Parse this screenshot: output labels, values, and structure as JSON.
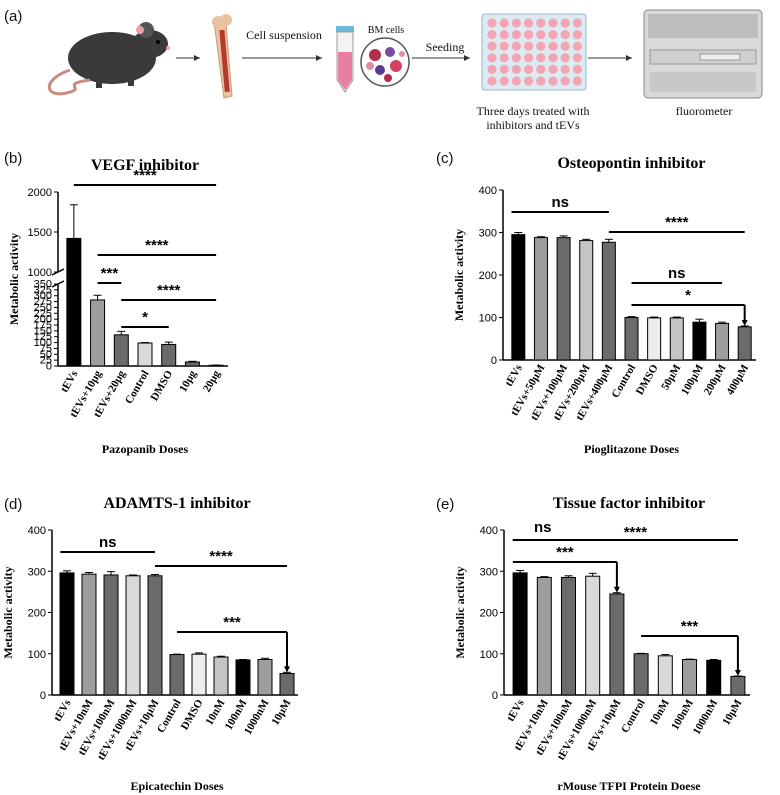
{
  "panels": {
    "a": "(a)",
    "b": "(b)",
    "c": "(c)",
    "d": "(d)",
    "e": "(e)"
  },
  "workflow": {
    "cell_suspension": "Cell suspension",
    "bm_cells": "BM cells",
    "seeding": "Seeding",
    "treated_line1": "Three days treated with",
    "treated_line2": "inhibitors and tEVs",
    "fluorometer": "fluorometer",
    "icons": [
      "mouse-icon",
      "bone-icon",
      "tube-icon",
      "cells-icon",
      "well-plate-icon",
      "fluorometer-icon"
    ],
    "colors": {
      "plate": "#dcebf2",
      "wells": "#f3a5b4",
      "mouse": "#3a3a3a",
      "bone": "#e9c2a0",
      "marrow": "#b33a2c",
      "tube": "#e77fa2"
    }
  },
  "chart_data": [
    {
      "type": "bar",
      "id": "b",
      "title": "VEGF inhibitor",
      "xlabel": "Pazopanib Doses",
      "ylabel": "Metabolic activity",
      "categories": [
        "tEVs",
        "tEVs+10μg",
        "tEVs+20μg",
        "Control",
        "DMSO",
        "10μg",
        "20μg"
      ],
      "values": [
        1420,
        282,
        133,
        98,
        92,
        17,
        3
      ],
      "errors": [
        420,
        20,
        15,
        2,
        10,
        3,
        1
      ],
      "colors": [
        "#000000",
        "#9d9d9d",
        "#6b6b6b",
        "#d9d9d9",
        "#6b6b6b",
        "#6b6b6b",
        "#6b6b6b"
      ],
      "y_axis_break": {
        "lower": [
          0,
          350
        ],
        "upper": [
          1000,
          2000
        ]
      },
      "yticks_lower": [
        0,
        25,
        50,
        75,
        100,
        125,
        150,
        175,
        200,
        225,
        250,
        275,
        300,
        325,
        350
      ],
      "yticks_upper": [
        1000,
        1500,
        2000
      ],
      "significance": [
        {
          "from": 0,
          "to": 6,
          "label": "****"
        },
        {
          "from": 1,
          "to": 6,
          "label": "****"
        },
        {
          "from": 1,
          "to": 2,
          "label": "***"
        },
        {
          "from": 2,
          "to": 6,
          "label": "****"
        },
        {
          "from": 2,
          "to": 4,
          "label": "*"
        }
      ]
    },
    {
      "type": "bar",
      "id": "c",
      "title": "Osteopontin inhibitor",
      "xlabel": "Pioglitazone  Doses",
      "ylabel": "Metabolic activity",
      "categories": [
        "tEVs",
        "tEVs+50μM",
        "tEVs+100μM",
        "tEVs+200μM",
        "tEVs+400μM",
        "Control",
        "DMSO",
        "50μM",
        "100μM",
        "200μM",
        "400μM"
      ],
      "values": [
        295,
        288,
        288,
        281,
        277,
        100,
        99,
        99,
        89,
        86,
        78
      ],
      "errors": [
        5,
        2,
        4,
        3,
        7,
        2,
        2,
        2,
        7,
        3,
        2
      ],
      "colors": [
        "#000000",
        "#9d9d9d",
        "#6b6b6b",
        "#c4c4c4",
        "#6b6b6b",
        "#6b6b6b",
        "#ededed",
        "#c4c4c4",
        "#000000",
        "#9d9d9d",
        "#6b6b6b"
      ],
      "ylim": [
        0,
        400
      ],
      "yticks": [
        0,
        100,
        200,
        300,
        400
      ],
      "significance": [
        {
          "from": 0,
          "to": 4,
          "label": "ns",
          "type": "line"
        },
        {
          "from": 4,
          "to": 10,
          "label": "****",
          "type": "line"
        },
        {
          "from": 5,
          "to": 9,
          "label": "ns",
          "type": "line"
        },
        {
          "from": 5,
          "to": 10,
          "label": "*",
          "type": "bracket"
        }
      ]
    },
    {
      "type": "bar",
      "id": "d",
      "title": "ADAMTS-1 inhibitor",
      "xlabel": "Epicatechin Doses",
      "ylabel": "Metabolic activity",
      "categories": [
        "tEVs",
        "tEVs+10nM",
        "tEVs+100nM",
        "tEVs+1000nM",
        "tEVs+10μM",
        "Control",
        "DMSO",
        "10nM",
        "100nM",
        "1000nM",
        "10μM"
      ],
      "values": [
        296,
        293,
        291,
        289,
        289,
        98,
        99,
        92,
        85,
        86,
        52
      ],
      "errors": [
        5,
        4,
        8,
        2,
        3,
        1,
        3,
        2,
        1,
        3,
        3
      ],
      "colors": [
        "#000000",
        "#9d9d9d",
        "#6b6b6b",
        "#d9d9d9",
        "#6b6b6b",
        "#6b6b6b",
        "#ededed",
        "#c4c4c4",
        "#000000",
        "#9d9d9d",
        "#6b6b6b"
      ],
      "ylim": [
        0,
        400
      ],
      "yticks": [
        0,
        100,
        200,
        300,
        400
      ],
      "significance": [
        {
          "from": 0,
          "to": 4,
          "label": "ns",
          "type": "line"
        },
        {
          "from": 4,
          "to": 10,
          "label": "****",
          "type": "line"
        },
        {
          "from": 5,
          "to": 10,
          "label": "***",
          "type": "bracket"
        }
      ]
    },
    {
      "type": "bar",
      "id": "e",
      "title": "Tissue factor inhibitor",
      "xlabel": "rMouse TFPI Protein Doese",
      "ylabel": "Metabolic activity",
      "categories": [
        "tEVs",
        "tEVs+10nM",
        "tEVs+100nM",
        "tEVs+1000nM",
        "tEVs+10μM",
        "Control",
        "10nM",
        "100nM",
        "1000nM",
        "10μM"
      ],
      "values": [
        296,
        285,
        285,
        288,
        245,
        100,
        95,
        86,
        84,
        45
      ],
      "errors": [
        6,
        2,
        4,
        7,
        3,
        1,
        3,
        1,
        2,
        1
      ],
      "colors": [
        "#000000",
        "#9d9d9d",
        "#6b6b6b",
        "#d9d9d9",
        "#6b6b6b",
        "#6b6b6b",
        "#d9d9d9",
        "#9d9d9d",
        "#000000",
        "#6b6b6b"
      ],
      "ylim": [
        0,
        400
      ],
      "yticks": [
        0,
        100,
        200,
        300,
        400
      ],
      "significance": [
        {
          "from": 0,
          "to": 3,
          "label": "ns",
          "type": "line"
        },
        {
          "from": 0,
          "to": 9,
          "label": "****",
          "type": "line"
        },
        {
          "from": 0,
          "to": 4,
          "label": "***",
          "type": "bracket"
        },
        {
          "from": 5,
          "to": 9,
          "label": "***",
          "type": "bracket"
        }
      ]
    }
  ]
}
